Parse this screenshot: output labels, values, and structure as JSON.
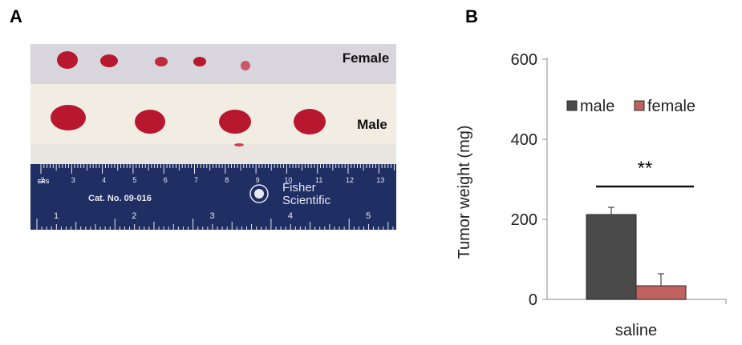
{
  "panels": {
    "a": "A",
    "b": "B"
  },
  "photo": {
    "label_female": "Female",
    "label_male": "Male",
    "ruler": {
      "catalog": "Cat. No. 09-016",
      "brand_line1": "Fisher",
      "brand_line2": "Scientific",
      "edge_text": "ERS",
      "cm_labels": [
        "2",
        "3",
        "4",
        "5",
        "6",
        "7",
        "8",
        "9",
        "10",
        "11",
        "12",
        "13"
      ],
      "inch_labels": [
        "1",
        "2",
        "3",
        "4",
        "5"
      ]
    },
    "colors": {
      "tumor": "#b8182f",
      "ruler": "#1f2e63",
      "paper": "#f2ede3",
      "female_bg": "#d8d5dc"
    }
  },
  "chart_data": {
    "type": "bar",
    "categories": [
      "saline"
    ],
    "series": [
      {
        "name": "male",
        "values": [
          212
        ],
        "error": [
          18
        ],
        "color": "#4a4a4a"
      },
      {
        "name": "female",
        "values": [
          34
        ],
        "error": [
          30
        ],
        "color": "#c0635e"
      }
    ],
    "ylabel": "Tumor weight (mg)",
    "xlabel": "",
    "ylim": [
      0,
      600
    ],
    "yticks": [
      0,
      200,
      400,
      600
    ],
    "legend": "top-left",
    "annotation": "**",
    "grid": false
  }
}
